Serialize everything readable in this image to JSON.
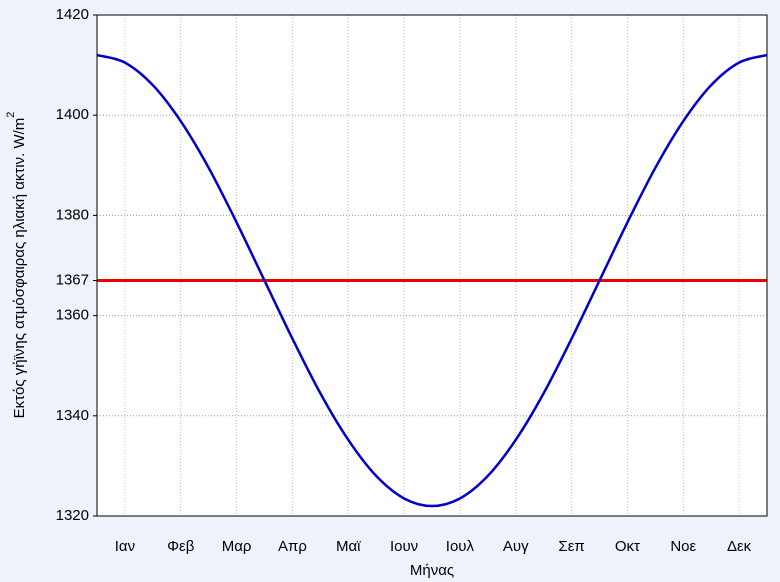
{
  "chart_data": {
    "type": "line",
    "x_label": "Μήνας",
    "y_label": "Εκτός γήϊνης ατμόσφαιρας ηλιακή ακτιν. W/m",
    "y_label_sup": "2",
    "categories": [
      "Ιαν",
      "Φεβ",
      "Μαρ",
      "Απρ",
      "Μαϊ",
      "Ιουν",
      "Ιουλ",
      "Αυγ",
      "Σεπ",
      "Οκτ",
      "Νοε",
      "Δεκ"
    ],
    "x": [
      0,
      0.5,
      1,
      1.5,
      2,
      2.5,
      3,
      3.5,
      4,
      4.5,
      5,
      5.5,
      6,
      6.5,
      7,
      7.5,
      8,
      8.5,
      9,
      9.5,
      10,
      10.5,
      11,
      11.5,
      12
    ],
    "series": [
      {
        "color": "#0000cc",
        "values": [
          1412,
          1410.5,
          1406,
          1398.8,
          1389.5,
          1378.6,
          1367,
          1355.4,
          1344.5,
          1335.2,
          1328,
          1323.5,
          1322,
          1323.5,
          1328,
          1335.2,
          1344.5,
          1355.4,
          1367,
          1378.6,
          1389.5,
          1398.8,
          1406,
          1410.5,
          1412
        ]
      }
    ],
    "reference_line": {
      "value": 1367,
      "color": "#ee0000"
    },
    "xlim": [
      0,
      12
    ],
    "ylim": [
      1320,
      1420
    ],
    "yticks": [
      1320,
      1340,
      1360,
      1367,
      1380,
      1400,
      1420
    ],
    "grid": true
  }
}
